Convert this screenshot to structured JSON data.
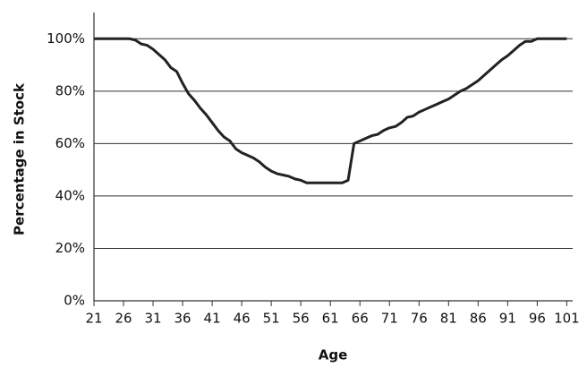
{
  "chart_data": {
    "type": "line",
    "x_label": "Age",
    "y_label": "Percentage in Stock",
    "x": [
      21,
      22,
      23,
      24,
      25,
      26,
      27,
      28,
      29,
      30,
      31,
      32,
      33,
      34,
      35,
      36,
      37,
      38,
      39,
      40,
      41,
      42,
      43,
      44,
      45,
      46,
      47,
      48,
      49,
      50,
      51,
      52,
      53,
      54,
      55,
      56,
      57,
      58,
      59,
      60,
      61,
      62,
      63,
      64,
      65,
      66,
      67,
      68,
      69,
      70,
      71,
      72,
      73,
      74,
      75,
      76,
      77,
      78,
      79,
      80,
      81,
      82,
      83,
      84,
      85,
      86,
      87,
      88,
      89,
      90,
      91,
      92,
      93,
      94,
      95,
      96,
      97,
      98,
      99,
      100,
      101
    ],
    "series": [
      {
        "name": "Percentage in Stock",
        "color": "#222222",
        "values": [
          100,
          100,
          100,
          100,
          100,
          100,
          100,
          99.5,
          98,
          97.5,
          96,
          94,
          92,
          89,
          87.5,
          83,
          79,
          76.5,
          73.5,
          71,
          68,
          65,
          62.5,
          61,
          58,
          56.5,
          55.5,
          54.5,
          53,
          51,
          49.5,
          48.5,
          48,
          47.5,
          46.5,
          46,
          45,
          45,
          45,
          45,
          45,
          45,
          45,
          46,
          60,
          61,
          62,
          63,
          63.5,
          65,
          66,
          66.5,
          68,
          70,
          70.5,
          72,
          73,
          74,
          75,
          76,
          77,
          78.5,
          80,
          81,
          82.5,
          84,
          86,
          88,
          90,
          92,
          93.5,
          95.5,
          97.5,
          99,
          99,
          100,
          100,
          100,
          100,
          100,
          100
        ]
      }
    ],
    "xlim": [
      21,
      102
    ],
    "ylim": [
      0,
      110
    ],
    "xticks": [
      21,
      26,
      31,
      36,
      41,
      46,
      51,
      56,
      61,
      66,
      71,
      76,
      81,
      86,
      91,
      96,
      101
    ],
    "yticks": [
      {
        "value": 0,
        "label": "0%"
      },
      {
        "value": 20,
        "label": "20%"
      },
      {
        "value": 40,
        "label": "40%"
      },
      {
        "value": 60,
        "label": "60%"
      },
      {
        "value": 80,
        "label": "80%"
      },
      {
        "value": 100,
        "label": "100%"
      }
    ],
    "grid": true
  }
}
